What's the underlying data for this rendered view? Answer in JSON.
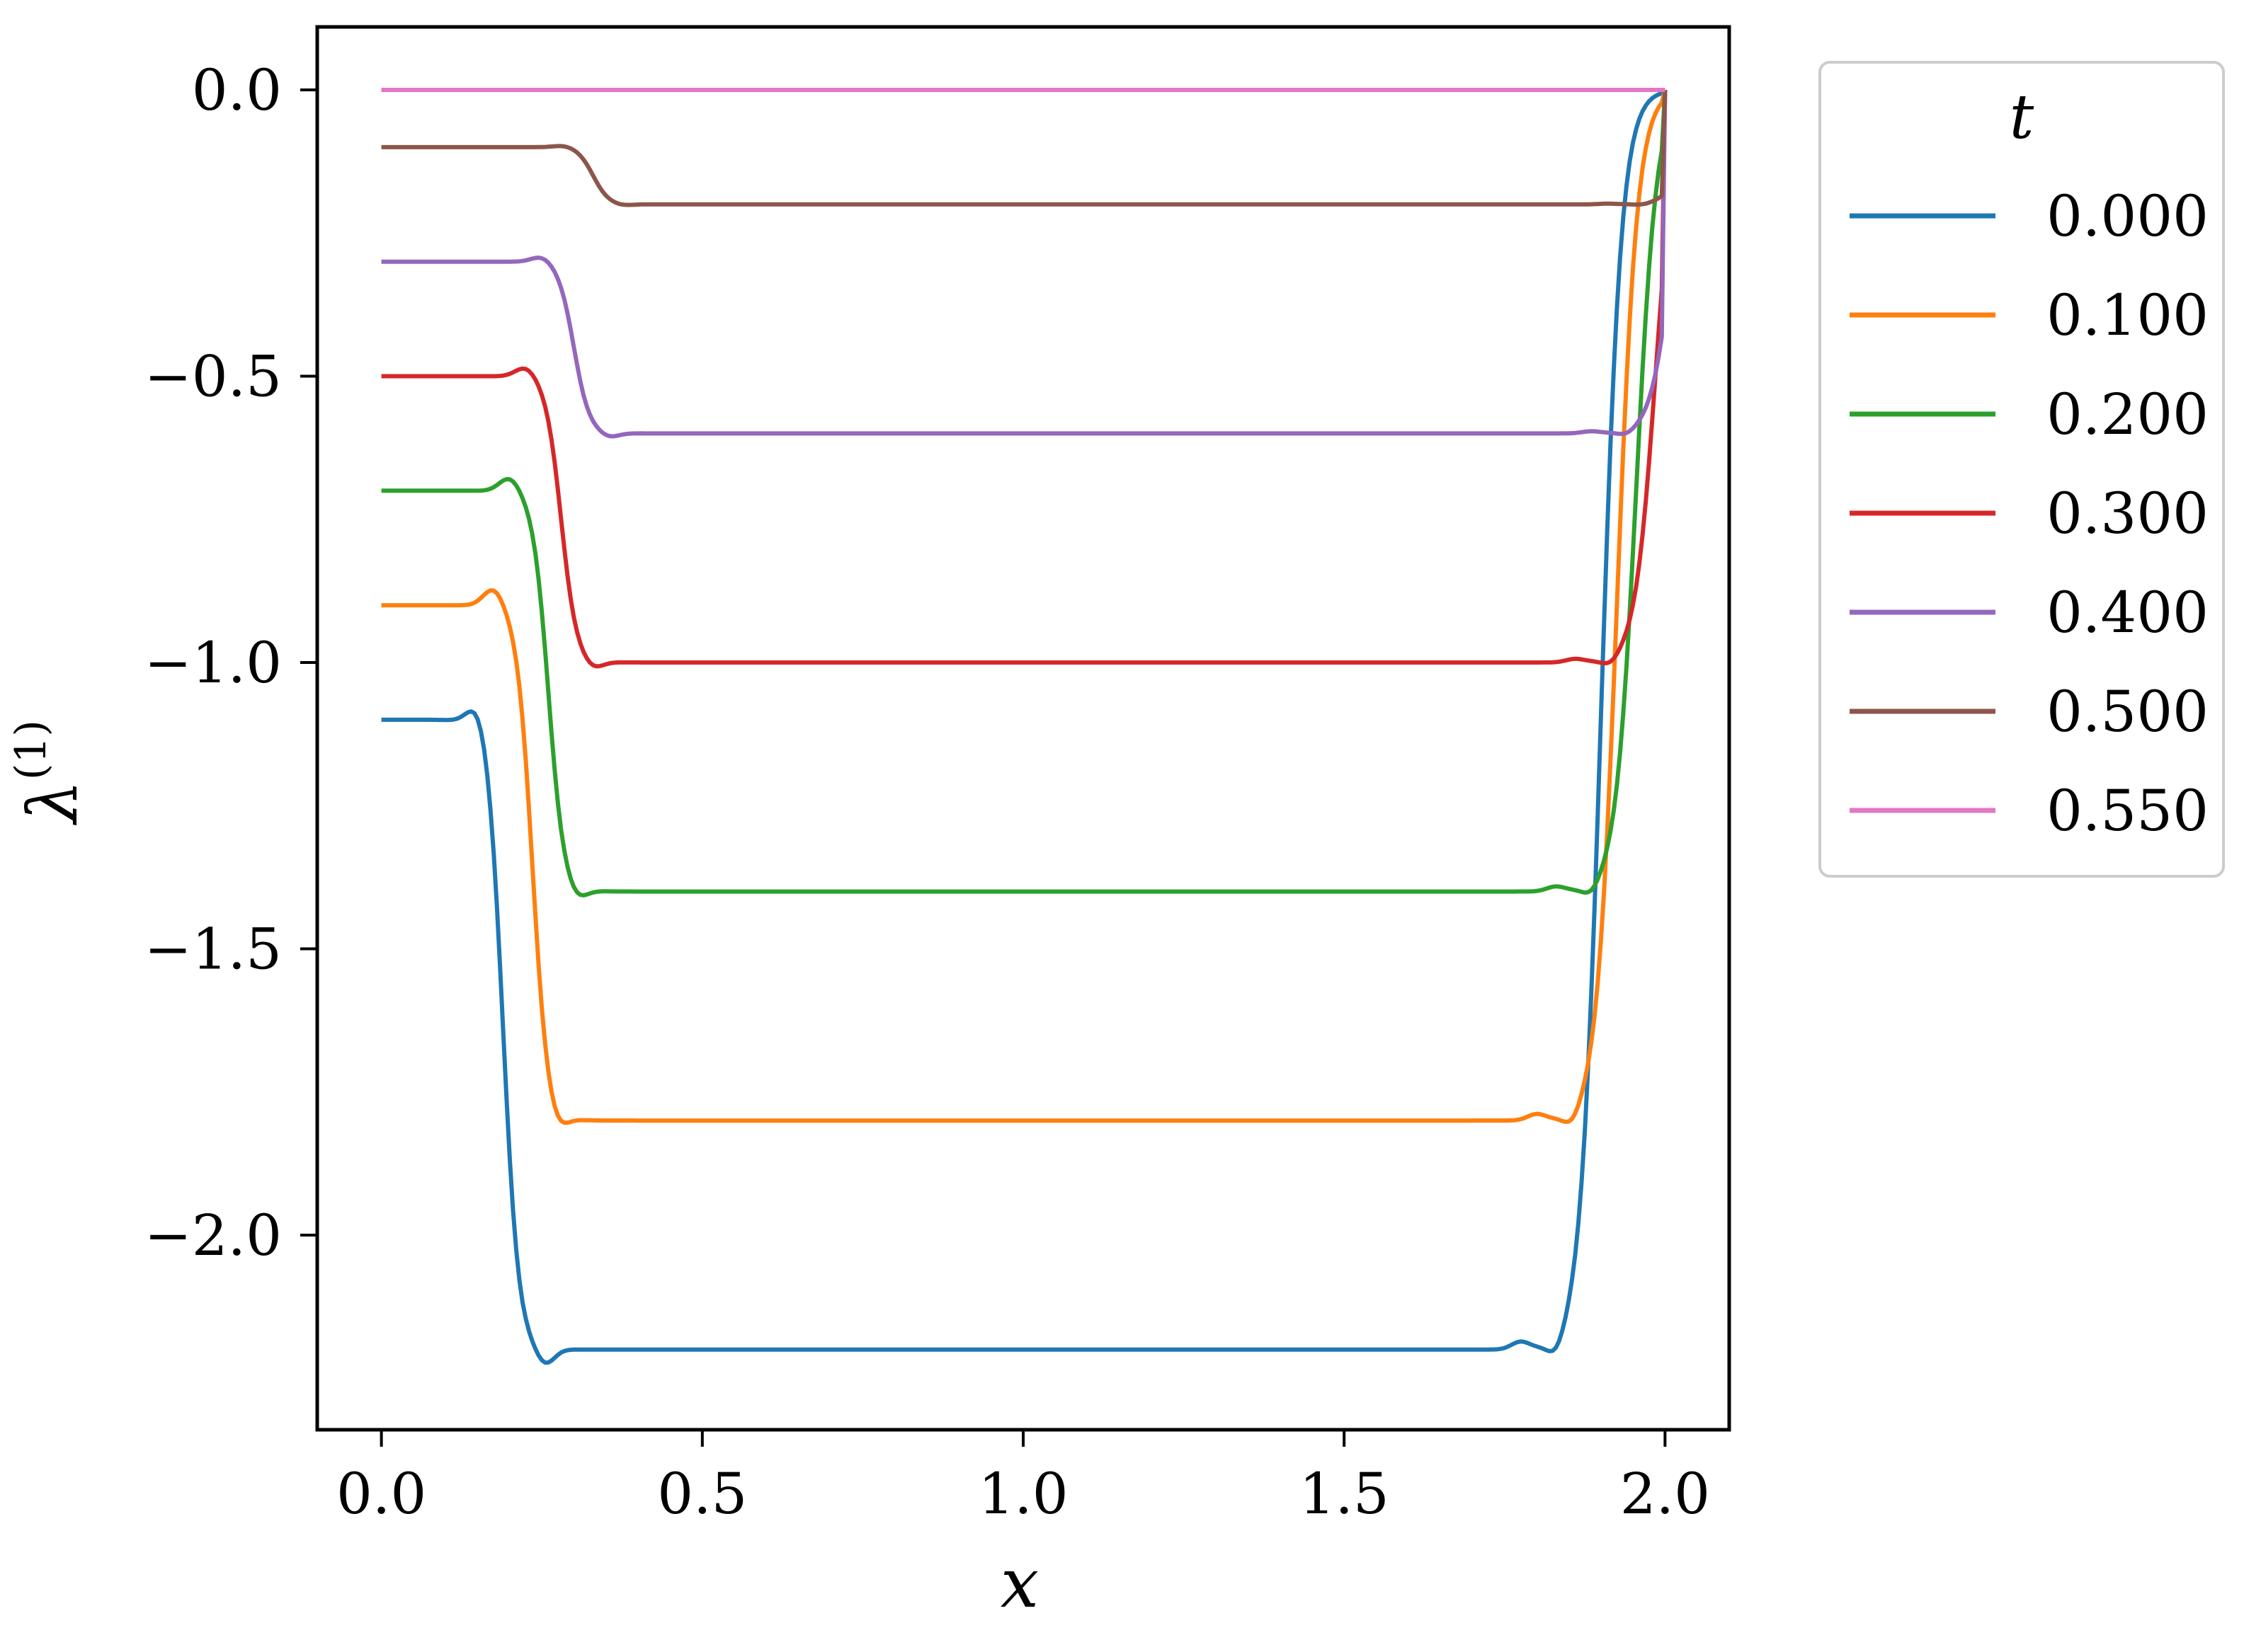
{
  "chart_data": {
    "type": "line",
    "title": "",
    "xlabel": "x",
    "ylabel": "λ",
    "ylabel_superscript": "(1)",
    "xlim": [
      -0.1,
      2.1
    ],
    "ylim": [
      -2.34,
      0.11
    ],
    "xticks": [
      0.0,
      0.5,
      1.0,
      1.5,
      2.0
    ],
    "xtick_labels": [
      "0.0",
      "0.5",
      "1.0",
      "1.5",
      "2.0"
    ],
    "yticks": [
      0.0,
      -0.5,
      -1.0,
      -1.5,
      -2.0
    ],
    "ytick_labels": [
      "0.0",
      "−0.5",
      "−1.0",
      "−1.5",
      "−2.0"
    ],
    "grid": false,
    "legend": {
      "title": "t",
      "placement": "outside-right-top"
    },
    "series": [
      {
        "name": "0.000",
        "color": "#1f77b4",
        "left": -1.1,
        "plateau": -2.2,
        "drop_x": 0.19,
        "bump_x": 0.15,
        "dip_x": 0.255,
        "rise_x": 1.83
      },
      {
        "name": "0.100",
        "color": "#ff7f0e",
        "left": -0.9,
        "plateau": -1.8,
        "drop_x": 0.235,
        "bump_x": 0.175,
        "dip_x": 0.275,
        "rise_x": 1.855
      },
      {
        "name": "0.200",
        "color": "#2ca02c",
        "left": -0.7,
        "plateau": -1.4,
        "drop_x": 0.26,
        "bump_x": 0.2,
        "dip_x": 0.305,
        "rise_x": 1.885
      },
      {
        "name": "0.300",
        "color": "#d62728",
        "left": -0.5,
        "plateau": -1.0,
        "drop_x": 0.28,
        "bump_x": 0.225,
        "dip_x": 0.33,
        "rise_x": 1.915
      },
      {
        "name": "0.400",
        "color": "#9467bd",
        "left": -0.3,
        "plateau": -0.6,
        "drop_x": 0.3,
        "bump_x": 0.25,
        "dip_x": 0.355,
        "rise_x": 1.94
      },
      {
        "name": "0.500",
        "color": "#8c564b",
        "left": -0.1,
        "plateau": -0.2,
        "drop_x": 0.33,
        "bump_x": 0.285,
        "dip_x": 0.375,
        "rise_x": 1.965
      },
      {
        "name": "0.550",
        "color": "#e377c2",
        "left": 0.0,
        "plateau": 0.0,
        "drop_x": 0.33,
        "bump_x": 0.285,
        "dip_x": 0.375,
        "rise_x": 1.965
      }
    ]
  }
}
